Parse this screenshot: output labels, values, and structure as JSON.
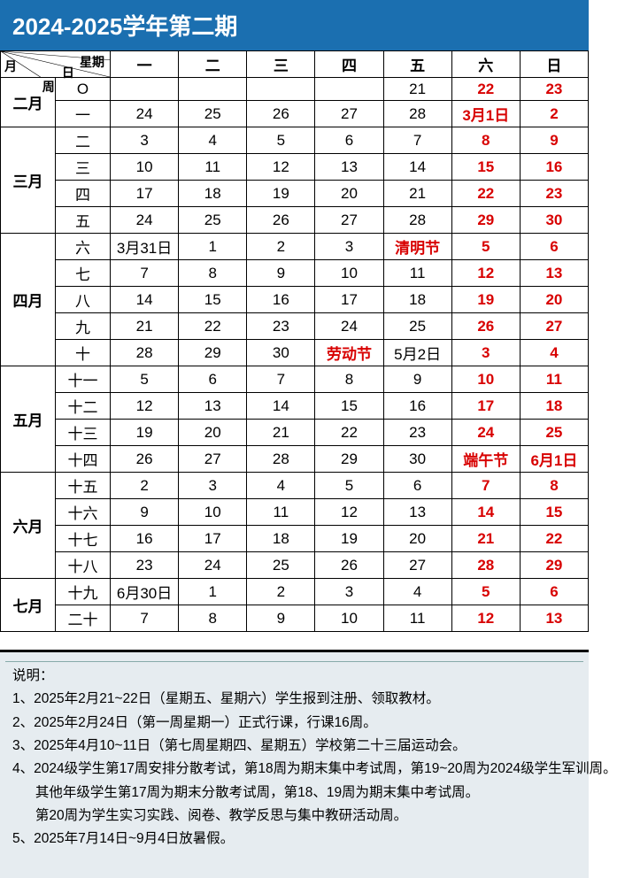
{
  "title": "2024-2025学年第二期",
  "header": {
    "diagonal_labels": {
      "xingqi": "星期",
      "ri": "日",
      "zhou": "周",
      "yue": "月"
    },
    "days": [
      "一",
      "二",
      "三",
      "四",
      "五",
      "六",
      "日"
    ]
  },
  "months": [
    {
      "name": "二月",
      "rows": [
        {
          "week": "O",
          "cells": [
            {
              "t": ""
            },
            {
              "t": ""
            },
            {
              "t": ""
            },
            {
              "t": ""
            },
            {
              "t": "21"
            },
            {
              "t": "22",
              "red": true
            },
            {
              "t": "23",
              "red": true
            }
          ]
        },
        {
          "week": "一",
          "cells": [
            {
              "t": "24"
            },
            {
              "t": "25"
            },
            {
              "t": "26"
            },
            {
              "t": "27"
            },
            {
              "t": "28"
            },
            {
              "t": "3月1日",
              "red": true
            },
            {
              "t": "2",
              "red": true
            }
          ]
        }
      ]
    },
    {
      "name": "三月",
      "rows": [
        {
          "week": "二",
          "cells": [
            {
              "t": "3"
            },
            {
              "t": "4"
            },
            {
              "t": "5"
            },
            {
              "t": "6"
            },
            {
              "t": "7"
            },
            {
              "t": "8",
              "red": true
            },
            {
              "t": "9",
              "red": true
            }
          ]
        },
        {
          "week": "三",
          "cells": [
            {
              "t": "10"
            },
            {
              "t": "11"
            },
            {
              "t": "12"
            },
            {
              "t": "13"
            },
            {
              "t": "14"
            },
            {
              "t": "15",
              "red": true
            },
            {
              "t": "16",
              "red": true
            }
          ]
        },
        {
          "week": "四",
          "cells": [
            {
              "t": "17"
            },
            {
              "t": "18"
            },
            {
              "t": "19"
            },
            {
              "t": "20"
            },
            {
              "t": "21"
            },
            {
              "t": "22",
              "red": true
            },
            {
              "t": "23",
              "red": true
            }
          ]
        },
        {
          "week": "五",
          "cells": [
            {
              "t": "24"
            },
            {
              "t": "25"
            },
            {
              "t": "26"
            },
            {
              "t": "27"
            },
            {
              "t": "28"
            },
            {
              "t": "29",
              "red": true
            },
            {
              "t": "30",
              "red": true
            }
          ]
        }
      ]
    },
    {
      "name": "四月",
      "rows": [
        {
          "week": "六",
          "cells": [
            {
              "t": "3月31日"
            },
            {
              "t": "1"
            },
            {
              "t": "2"
            },
            {
              "t": "3"
            },
            {
              "t": "清明节",
              "red": true
            },
            {
              "t": "5",
              "red": true
            },
            {
              "t": "6",
              "red": true
            }
          ]
        },
        {
          "week": "七",
          "cells": [
            {
              "t": "7"
            },
            {
              "t": "8"
            },
            {
              "t": "9"
            },
            {
              "t": "10"
            },
            {
              "t": "11"
            },
            {
              "t": "12",
              "red": true
            },
            {
              "t": "13",
              "red": true
            }
          ]
        },
        {
          "week": "八",
          "cells": [
            {
              "t": "14"
            },
            {
              "t": "15"
            },
            {
              "t": "16"
            },
            {
              "t": "17"
            },
            {
              "t": "18"
            },
            {
              "t": "19",
              "red": true
            },
            {
              "t": "20",
              "red": true
            }
          ]
        },
        {
          "week": "九",
          "cells": [
            {
              "t": "21"
            },
            {
              "t": "22"
            },
            {
              "t": "23"
            },
            {
              "t": "24"
            },
            {
              "t": "25"
            },
            {
              "t": "26",
              "red": true
            },
            {
              "t": "27",
              "red": true
            }
          ]
        },
        {
          "week": "十",
          "cells": [
            {
              "t": "28"
            },
            {
              "t": "29"
            },
            {
              "t": "30"
            },
            {
              "t": "劳动节",
              "red": true
            },
            {
              "t": "5月2日"
            },
            {
              "t": "3",
              "red": true
            },
            {
              "t": "4",
              "red": true
            }
          ]
        }
      ]
    },
    {
      "name": "五月",
      "rows": [
        {
          "week": "十一",
          "cells": [
            {
              "t": "5"
            },
            {
              "t": "6"
            },
            {
              "t": "7"
            },
            {
              "t": "8"
            },
            {
              "t": "9"
            },
            {
              "t": "10",
              "red": true
            },
            {
              "t": "11",
              "red": true
            }
          ]
        },
        {
          "week": "十二",
          "cells": [
            {
              "t": "12"
            },
            {
              "t": "13"
            },
            {
              "t": "14"
            },
            {
              "t": "15"
            },
            {
              "t": "16"
            },
            {
              "t": "17",
              "red": true
            },
            {
              "t": "18",
              "red": true
            }
          ]
        },
        {
          "week": "十三",
          "cells": [
            {
              "t": "19"
            },
            {
              "t": "20"
            },
            {
              "t": "21"
            },
            {
              "t": "22"
            },
            {
              "t": "23"
            },
            {
              "t": "24",
              "red": true
            },
            {
              "t": "25",
              "red": true
            }
          ]
        },
        {
          "week": "十四",
          "cells": [
            {
              "t": "26"
            },
            {
              "t": "27"
            },
            {
              "t": "28"
            },
            {
              "t": "29"
            },
            {
              "t": "30"
            },
            {
              "t": "端午节",
              "red": true
            },
            {
              "t": "6月1日",
              "red": true
            }
          ]
        }
      ]
    },
    {
      "name": "六月",
      "rows": [
        {
          "week": "十五",
          "cells": [
            {
              "t": "2"
            },
            {
              "t": "3"
            },
            {
              "t": "4"
            },
            {
              "t": "5"
            },
            {
              "t": "6"
            },
            {
              "t": "7",
              "red": true
            },
            {
              "t": "8",
              "red": true
            }
          ]
        },
        {
          "week": "十六",
          "cells": [
            {
              "t": "9"
            },
            {
              "t": "10"
            },
            {
              "t": "11"
            },
            {
              "t": "12"
            },
            {
              "t": "13"
            },
            {
              "t": "14",
              "red": true
            },
            {
              "t": "15",
              "red": true
            }
          ]
        },
        {
          "week": "十七",
          "cells": [
            {
              "t": "16"
            },
            {
              "t": "17"
            },
            {
              "t": "18"
            },
            {
              "t": "19"
            },
            {
              "t": "20"
            },
            {
              "t": "21",
              "red": true
            },
            {
              "t": "22",
              "red": true
            }
          ]
        },
        {
          "week": "十八",
          "cells": [
            {
              "t": "23"
            },
            {
              "t": "24"
            },
            {
              "t": "25"
            },
            {
              "t": "26"
            },
            {
              "t": "27"
            },
            {
              "t": "28",
              "red": true
            },
            {
              "t": "29",
              "red": true
            }
          ]
        }
      ]
    },
    {
      "name": "七月",
      "rows": [
        {
          "week": "十九",
          "cells": [
            {
              "t": "6月30日"
            },
            {
              "t": "1"
            },
            {
              "t": "2"
            },
            {
              "t": "3"
            },
            {
              "t": "4"
            },
            {
              "t": "5",
              "red": true
            },
            {
              "t": "6",
              "red": true
            }
          ]
        },
        {
          "week": "二十",
          "cells": [
            {
              "t": "7"
            },
            {
              "t": "8"
            },
            {
              "t": "9"
            },
            {
              "t": "10"
            },
            {
              "t": "11"
            },
            {
              "t": "12",
              "red": true
            },
            {
              "t": "13",
              "red": true
            }
          ]
        }
      ]
    }
  ],
  "notes": {
    "heading": "说明：",
    "lines": [
      "1、2025年2月21~22日（星期五、星期六）学生报到注册、领取教材。",
      "2、2025年2月24日（第一周星期一）正式行课，行课16周。",
      "3、2025年4月10~11日（第七周星期四、星期五）学校第二十三届运动会。",
      "4、2024级学生第17周安排分散考试，第18周为期末集中考试周，第19~20周为2024级学生军训周。",
      "      其他年级学生第17周为期末分散考试周，第18、19周为期末集中考试周。",
      "      第20周为学生实习实践、阅卷、教学反思与集中教研活动周。",
      "5、2025年7月14日~9月4日放暑假。"
    ]
  },
  "style": {
    "title_bg": "#1b6fb0",
    "title_fg": "#ffffff",
    "red": "#d80000",
    "notes_bg": "#e6ecf0",
    "border_color": "#000000"
  }
}
